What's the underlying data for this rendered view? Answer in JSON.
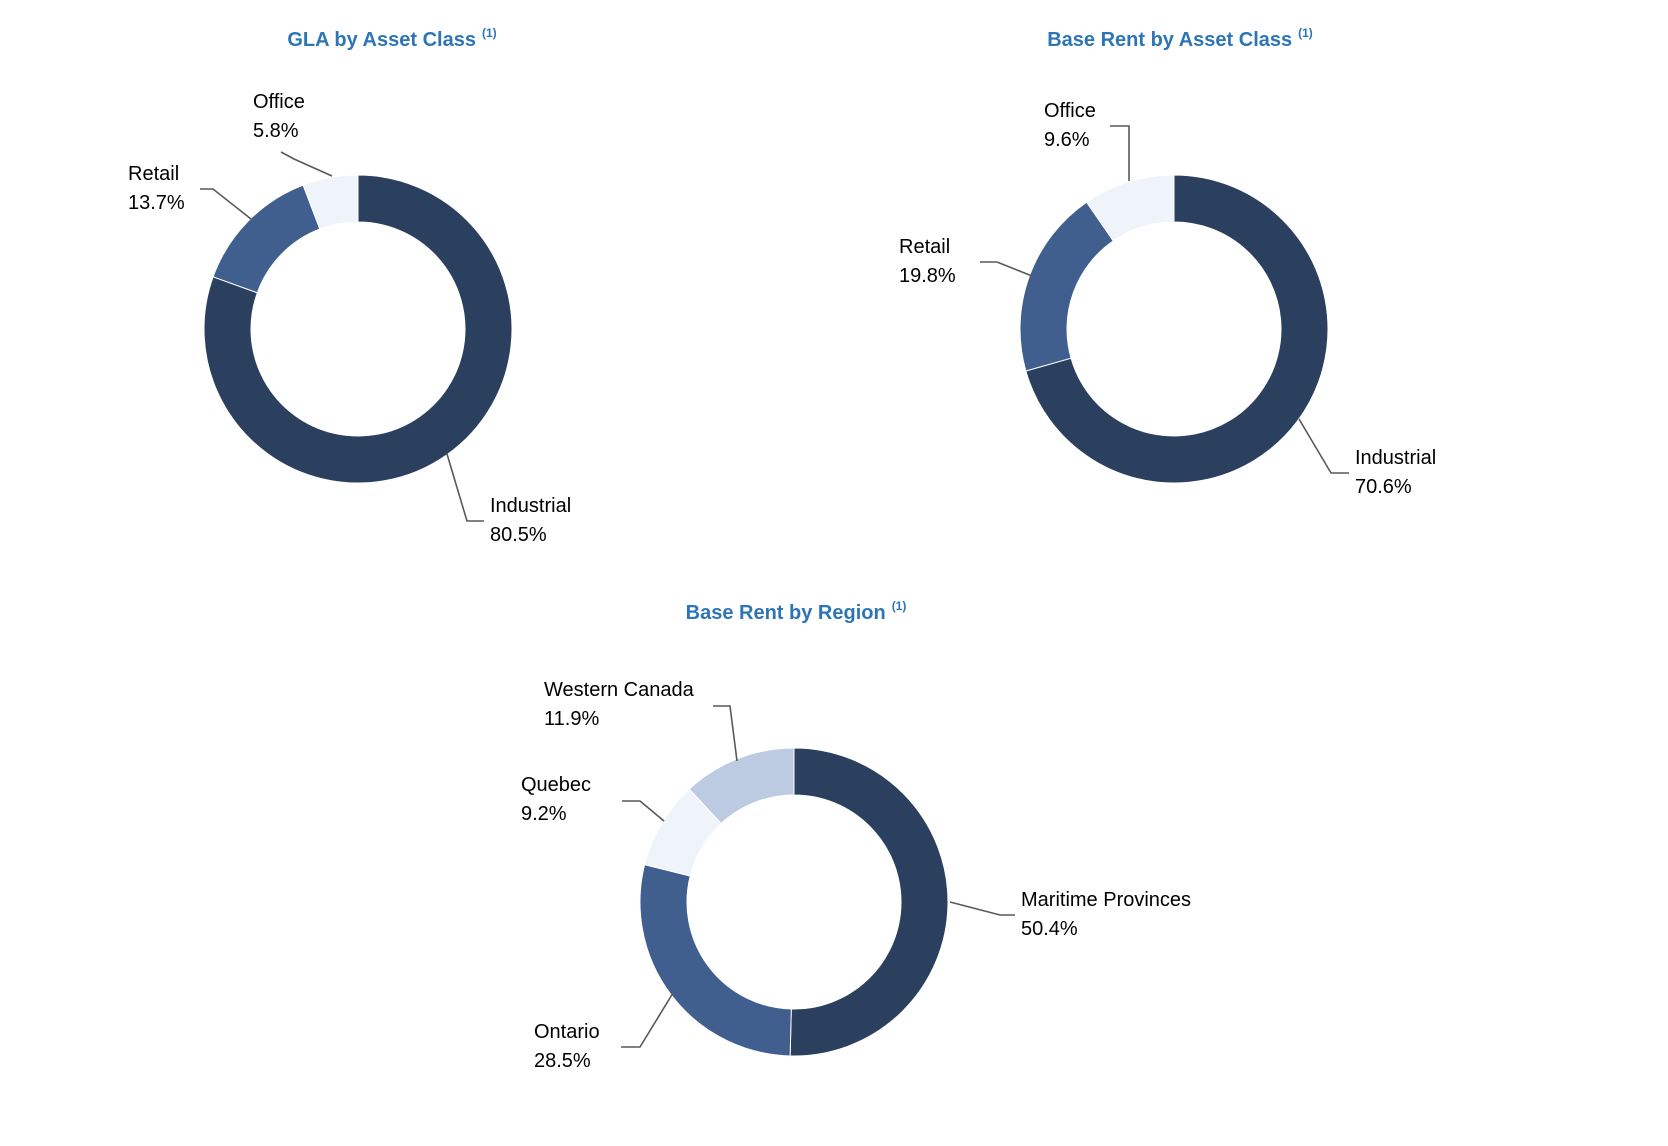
{
  "charts": [
    {
      "type": "pie",
      "title": "GLA by Asset Class",
      "title_sup": "(1)",
      "slices": [
        {
          "label": "Industrial",
          "value_label": "80.5%",
          "value": 80.5,
          "color": "#2b3f5e"
        },
        {
          "label": "Retail",
          "value_label": "13.7%",
          "value": 13.7,
          "color": "#405f8e"
        },
        {
          "label": "Office",
          "value_label": "5.8%",
          "value": 5.8,
          "color": "#eef4f9"
        }
      ]
    },
    {
      "type": "pie",
      "title": "Base Rent by Asset Class",
      "title_sup": "(1)",
      "slices": [
        {
          "label": "Industrial",
          "value_label": "70.6%",
          "value": 70.6,
          "color": "#2b3f5e"
        },
        {
          "label": "Retail",
          "value_label": "19.8%",
          "value": 19.8,
          "color": "#405f8e"
        },
        {
          "label": "Office",
          "value_label": "9.6%",
          "value": 9.6,
          "color": "#eef4f9"
        }
      ]
    },
    {
      "type": "pie",
      "title": "Base Rent by Region",
      "title_sup": "(1)",
      "slices": [
        {
          "label": "Maritime Provinces",
          "value_label": "50.4%",
          "value": 50.4,
          "color": "#2b3f5e"
        },
        {
          "label": "Ontario",
          "value_label": "28.5%",
          "value": 28.5,
          "color": "#405f8e"
        },
        {
          "label": "Quebec",
          "value_label": "9.2%",
          "value": 9.2,
          "color": "#eef4f9"
        },
        {
          "label": "Western Canada",
          "value_label": "11.9%",
          "value": 11.9,
          "color": "#bccae2"
        }
      ]
    }
  ]
}
